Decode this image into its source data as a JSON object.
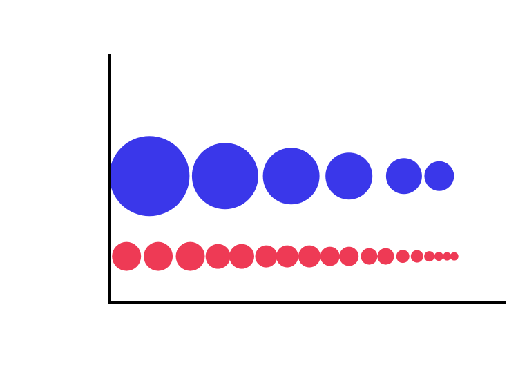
{
  "chart_data": {
    "type": "scatter",
    "title": "",
    "xlabel": "",
    "ylabel": "",
    "grid": false,
    "legend": "none",
    "xlim": [
      0,
      100
    ],
    "ylim": [
      0,
      100
    ],
    "series": [
      {
        "color": "#3a37ea",
        "points": [
          {
            "x": 10.2,
            "y": 51.2,
            "r": 58
          },
          {
            "x": 29.3,
            "y": 51.2,
            "r": 48
          },
          {
            "x": 46.0,
            "y": 51.2,
            "r": 41
          },
          {
            "x": 60.6,
            "y": 51.2,
            "r": 34
          },
          {
            "x": 74.5,
            "y": 51.2,
            "r": 26
          },
          {
            "x": 83.4,
            "y": 51.2,
            "r": 21.5
          }
        ]
      },
      {
        "color": "#ee3a55",
        "points": [
          {
            "x": 4.4,
            "y": 18.6,
            "r": 21
          },
          {
            "x": 12.4,
            "y": 18.6,
            "r": 21
          },
          {
            "x": 20.5,
            "y": 18.6,
            "r": 21
          },
          {
            "x": 27.5,
            "y": 18.6,
            "r": 18
          },
          {
            "x": 33.5,
            "y": 18.6,
            "r": 18
          },
          {
            "x": 39.7,
            "y": 18.6,
            "r": 16
          },
          {
            "x": 45.0,
            "y": 18.6,
            "r": 16
          },
          {
            "x": 50.6,
            "y": 18.6,
            "r": 16
          },
          {
            "x": 55.8,
            "y": 18.6,
            "r": 14
          },
          {
            "x": 60.6,
            "y": 18.6,
            "r": 14
          },
          {
            "x": 65.7,
            "y": 18.6,
            "r": 12
          },
          {
            "x": 69.9,
            "y": 18.6,
            "r": 12
          },
          {
            "x": 74.2,
            "y": 18.6,
            "r": 9.5
          },
          {
            "x": 77.8,
            "y": 18.6,
            "r": 9
          },
          {
            "x": 80.9,
            "y": 18.6,
            "r": 7.5
          },
          {
            "x": 83.3,
            "y": 18.6,
            "r": 6.5
          },
          {
            "x": 85.4,
            "y": 18.6,
            "r": 6
          },
          {
            "x": 87.2,
            "y": 18.6,
            "r": 6
          }
        ]
      }
    ]
  }
}
